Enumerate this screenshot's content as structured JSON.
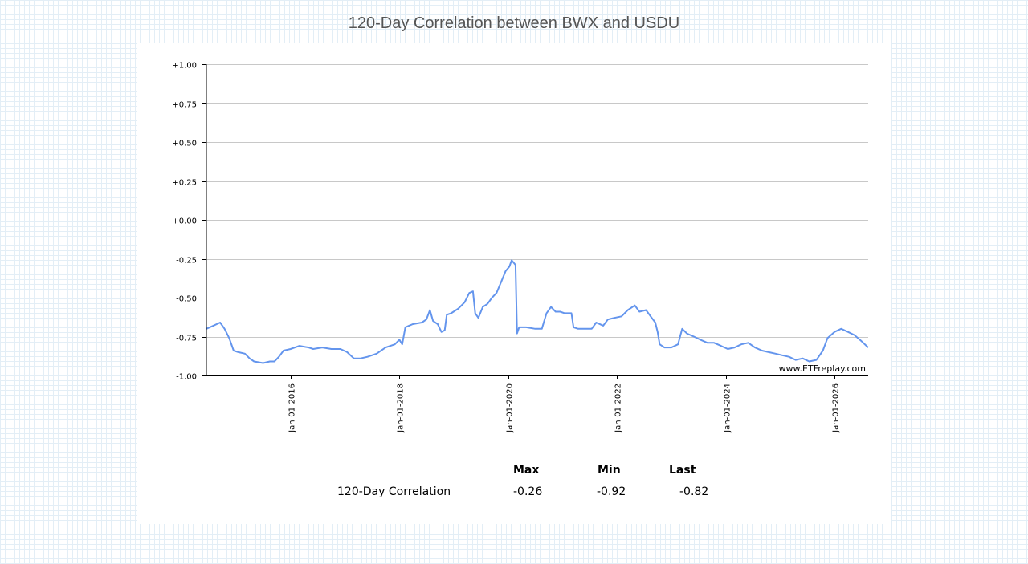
{
  "page": {
    "title": "120-Day Correlation between BWX and USDU"
  },
  "chart_data": {
    "type": "line",
    "title": "120-Day Correlation between BWX and USDU",
    "xlabel": "",
    "ylabel": "",
    "ylim": [
      -1.0,
      1.0
    ],
    "xlim": [
      "2014-06-15",
      "2026-08-15"
    ],
    "grid": "horizontal",
    "watermark": "www.ETFreplay.com",
    "y_ticks": [
      "+1.00",
      "+0.75",
      "+0.50",
      "+0.25",
      "+0.00",
      "-0.25",
      "-0.50",
      "-0.75",
      "-1.00"
    ],
    "x_ticks": [
      "Jan-01-2016",
      "Jan-01-2018",
      "Jan-01-2020",
      "Jan-01-2022",
      "Jan-01-2024",
      "Jan-01-2026"
    ],
    "series": [
      {
        "name": "120-Day Correlation",
        "color": "#6495ed",
        "x": [
          "2014-06-15",
          "2014-08-01",
          "2014-09-15",
          "2014-10-15",
          "2014-11-15",
          "2014-12-15",
          "2015-01-15",
          "2015-03-01",
          "2015-04-01",
          "2015-05-01",
          "2015-07-01",
          "2015-08-15",
          "2015-09-15",
          "2015-10-15",
          "2015-11-15",
          "2016-01-01",
          "2016-03-01",
          "2016-05-01",
          "2016-06-01",
          "2016-08-01",
          "2016-10-01",
          "2016-12-01",
          "2017-01-15",
          "2017-03-01",
          "2017-04-15",
          "2017-06-01",
          "2017-08-01",
          "2017-10-01",
          "2017-12-01",
          "2018-01-01",
          "2018-01-20",
          "2018-02-10",
          "2018-04-01",
          "2018-06-01",
          "2018-07-01",
          "2018-07-25",
          "2018-08-15",
          "2018-09-15",
          "2018-10-10",
          "2018-11-01",
          "2018-11-15",
          "2018-12-15",
          "2019-02-01",
          "2019-03-15",
          "2019-04-15",
          "2019-05-10",
          "2019-05-25",
          "2019-06-15",
          "2019-07-15",
          "2019-08-15",
          "2019-09-15",
          "2019-10-15",
          "2019-11-15",
          "2019-12-15",
          "2020-01-10",
          "2020-01-25",
          "2020-02-20",
          "2020-03-01",
          "2020-03-15",
          "2020-05-01",
          "2020-07-01",
          "2020-08-15",
          "2020-09-15",
          "2020-10-15",
          "2020-11-15",
          "2020-12-15",
          "2021-01-15",
          "2021-03-01",
          "2021-03-15",
          "2021-04-15",
          "2021-06-01",
          "2021-07-15",
          "2021-08-15",
          "2021-10-01",
          "2021-11-01",
          "2021-12-15",
          "2022-02-01",
          "2022-03-15",
          "2022-05-01",
          "2022-06-01",
          "2022-07-15",
          "2022-08-15",
          "2022-09-15",
          "2022-10-01",
          "2022-10-15",
          "2022-11-15",
          "2023-01-01",
          "2023-02-15",
          "2023-03-15",
          "2023-04-15",
          "2023-06-01",
          "2023-07-15",
          "2023-09-01",
          "2023-10-15",
          "2023-12-01",
          "2024-01-15",
          "2024-03-01",
          "2024-04-15",
          "2024-06-01",
          "2024-07-15",
          "2024-09-01",
          "2024-10-15",
          "2024-12-01",
          "2025-01-15",
          "2025-03-01",
          "2025-04-15",
          "2025-06-01",
          "2025-07-15",
          "2025-09-01",
          "2025-10-15",
          "2025-11-15",
          "2026-01-01",
          "2026-02-15",
          "2026-04-01",
          "2026-05-15",
          "2026-07-01",
          "2026-08-15"
        ],
        "y": [
          -0.7,
          -0.68,
          -0.66,
          -0.7,
          -0.76,
          -0.84,
          -0.85,
          -0.86,
          -0.89,
          -0.91,
          -0.92,
          -0.91,
          -0.91,
          -0.88,
          -0.84,
          -0.83,
          -0.81,
          -0.82,
          -0.83,
          -0.82,
          -0.83,
          -0.83,
          -0.85,
          -0.89,
          -0.89,
          -0.88,
          -0.86,
          -0.82,
          -0.8,
          -0.77,
          -0.8,
          -0.69,
          -0.67,
          -0.66,
          -0.64,
          -0.58,
          -0.65,
          -0.67,
          -0.72,
          -0.71,
          -0.61,
          -0.6,
          -0.57,
          -0.53,
          -0.47,
          -0.46,
          -0.6,
          -0.63,
          -0.56,
          -0.54,
          -0.5,
          -0.47,
          -0.4,
          -0.33,
          -0.3,
          -0.26,
          -0.29,
          -0.73,
          -0.69,
          -0.69,
          -0.7,
          -0.7,
          -0.6,
          -0.56,
          -0.59,
          -0.59,
          -0.6,
          -0.6,
          -0.69,
          -0.7,
          -0.7,
          -0.7,
          -0.66,
          -0.68,
          -0.64,
          -0.63,
          -0.62,
          -0.58,
          -0.55,
          -0.59,
          -0.58,
          -0.62,
          -0.66,
          -0.72,
          -0.8,
          -0.82,
          -0.82,
          -0.8,
          -0.7,
          -0.73,
          -0.75,
          -0.77,
          -0.79,
          -0.79,
          -0.81,
          -0.83,
          -0.82,
          -0.8,
          -0.79,
          -0.82,
          -0.84,
          -0.85,
          -0.86,
          -0.87,
          -0.88,
          -0.9,
          -0.89,
          -0.91,
          -0.9,
          -0.84,
          -0.76,
          -0.72,
          -0.7,
          -0.72,
          -0.74,
          -0.78,
          -0.82
        ]
      }
    ]
  },
  "stats": {
    "headers": [
      "Max",
      "Min",
      "Last"
    ],
    "row_label": "120-Day Correlation",
    "values": [
      "-0.26",
      "-0.92",
      "-0.82"
    ]
  }
}
